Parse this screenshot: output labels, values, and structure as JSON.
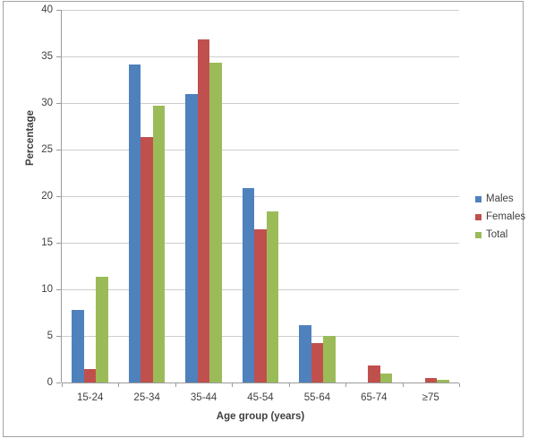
{
  "chart_data": {
    "type": "bar",
    "title": "",
    "categories": [
      "15-24",
      "25-34",
      "35-44",
      "45-54",
      "55-64",
      "65-74",
      "≥75"
    ],
    "series": [
      {
        "name": "Males",
        "color": "#4F81BD",
        "values": [
          7.8,
          34.1,
          31.0,
          20.9,
          6.2,
          0.0,
          0.0
        ]
      },
      {
        "name": "Females",
        "color": "#C0504D",
        "values": [
          1.4,
          26.3,
          36.8,
          16.4,
          4.2,
          1.8,
          0.5
        ]
      },
      {
        "name": "Total",
        "color": "#9BBB59",
        "values": [
          11.3,
          29.7,
          34.3,
          18.4,
          5.0,
          1.0,
          0.3
        ]
      }
    ],
    "xlabel": "Age group (years)",
    "ylabel": "Percentage",
    "ylim": [
      0,
      40
    ],
    "ytick_step": 5,
    "yticks": [
      0,
      5,
      10,
      15,
      20,
      25,
      30,
      35,
      40
    ],
    "grid": true,
    "legend_position": "right"
  },
  "palette": {
    "background": "#FFFFFF",
    "border": "#A3A3A3",
    "gridline": "#CDCDCD",
    "axis_line": "#9B9B9B",
    "text": "#3F3F3F"
  }
}
